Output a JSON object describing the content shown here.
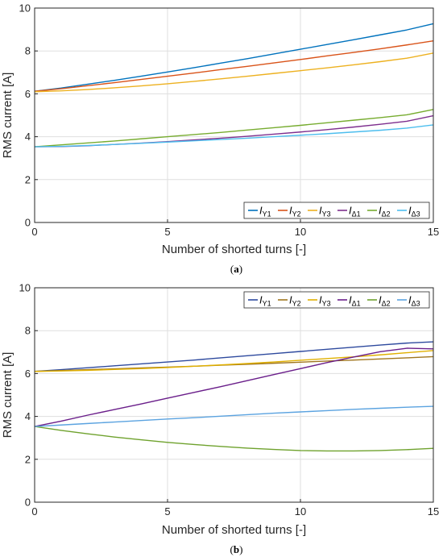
{
  "chart_data": [
    {
      "type": "line",
      "panel_label": "a",
      "xlabel": "Number of shorted turns [-]",
      "ylabel": "RMS current [A]",
      "xlim": [
        0,
        15
      ],
      "ylim": [
        0,
        10
      ],
      "xticks": [
        "0",
        "5",
        "10",
        "15"
      ],
      "yticks": [
        "0",
        "2",
        "4",
        "6",
        "8",
        "10"
      ],
      "grid": true,
      "legend": {
        "position": "bottom-right",
        "orientation": "horizontal"
      },
      "x": [
        0,
        1,
        2,
        3,
        4,
        5,
        6,
        7,
        8,
        9,
        10,
        11,
        12,
        13,
        14,
        15
      ],
      "series": [
        {
          "name": "IY1",
          "label_main": "I",
          "label_sub": "Y1",
          "color": "#0072BD",
          "values": [
            6.12,
            6.27,
            6.45,
            6.63,
            6.82,
            7.02,
            7.22,
            7.43,
            7.64,
            7.86,
            8.08,
            8.3,
            8.52,
            8.75,
            8.98,
            9.27
          ]
        },
        {
          "name": "IY2",
          "label_main": "I",
          "label_sub": "Y2",
          "color": "#D95319",
          "values": [
            6.12,
            6.24,
            6.38,
            6.52,
            6.67,
            6.82,
            6.97,
            7.13,
            7.28,
            7.44,
            7.6,
            7.77,
            7.93,
            8.1,
            8.28,
            8.47
          ]
        },
        {
          "name": "IY3",
          "label_main": "I",
          "label_sub": "Y3",
          "color": "#EDB120",
          "values": [
            6.1,
            6.14,
            6.2,
            6.28,
            6.37,
            6.47,
            6.58,
            6.7,
            6.82,
            6.95,
            7.08,
            7.21,
            7.35,
            7.5,
            7.66,
            7.9
          ]
        },
        {
          "name": "IΔ1",
          "label_main": "I",
          "label_sub": "Δ1",
          "color": "#7E2F8E",
          "values": [
            3.53,
            3.54,
            3.58,
            3.64,
            3.7,
            3.77,
            3.85,
            3.93,
            4.02,
            4.12,
            4.22,
            4.33,
            4.45,
            4.58,
            4.72,
            4.98
          ]
        },
        {
          "name": "IΔ2",
          "label_main": "I",
          "label_sub": "Δ2",
          "color": "#77AC30",
          "values": [
            3.53,
            3.62,
            3.71,
            3.8,
            3.9,
            4.0,
            4.1,
            4.2,
            4.31,
            4.42,
            4.53,
            4.65,
            4.77,
            4.89,
            5.02,
            5.27
          ]
        },
        {
          "name": "IΔ3",
          "label_main": "I",
          "label_sub": "Δ3",
          "color": "#4DBEEE",
          "values": [
            3.53,
            3.55,
            3.59,
            3.64,
            3.69,
            3.75,
            3.81,
            3.87,
            3.93,
            4.0,
            4.07,
            4.14,
            4.22,
            4.3,
            4.4,
            4.55
          ]
        }
      ]
    },
    {
      "type": "line",
      "panel_label": "b",
      "xlabel": "Number of shorted turns [-]",
      "ylabel": "RMS current [A]",
      "xlim": [
        0,
        15
      ],
      "ylim": [
        0,
        10
      ],
      "xticks": [
        "0",
        "5",
        "10",
        "15"
      ],
      "yticks": [
        "0",
        "2",
        "4",
        "6",
        "8",
        "10"
      ],
      "grid": true,
      "legend": {
        "position": "top-right",
        "orientation": "horizontal"
      },
      "x": [
        0,
        1,
        2,
        3,
        4,
        5,
        6,
        7,
        8,
        9,
        10,
        11,
        12,
        13,
        14,
        15
      ],
      "series": [
        {
          "name": "IY1",
          "label_main": "I",
          "label_sub": "Y1",
          "color": "#2E4A9E",
          "values": [
            6.1,
            6.18,
            6.27,
            6.36,
            6.45,
            6.54,
            6.63,
            6.73,
            6.83,
            6.93,
            7.03,
            7.13,
            7.23,
            7.33,
            7.42,
            7.48
          ]
        },
        {
          "name": "IY2",
          "label_main": "I",
          "label_sub": "Y2",
          "color": "#A0761E",
          "values": [
            6.1,
            6.14,
            6.18,
            6.22,
            6.26,
            6.3,
            6.34,
            6.39,
            6.43,
            6.48,
            6.53,
            6.58,
            6.63,
            6.68,
            6.73,
            6.79
          ]
        },
        {
          "name": "IY3",
          "label_main": "I",
          "label_sub": "Y3",
          "color": "#E0B000",
          "values": [
            6.1,
            6.12,
            6.15,
            6.19,
            6.23,
            6.28,
            6.34,
            6.4,
            6.47,
            6.54,
            6.62,
            6.7,
            6.78,
            6.87,
            6.97,
            7.07
          ]
        },
        {
          "name": "IΔ1",
          "label_main": "I",
          "label_sub": "Δ1",
          "color": "#6A1E8A",
          "values": [
            3.53,
            3.78,
            4.06,
            4.32,
            4.58,
            4.85,
            5.12,
            5.39,
            5.67,
            5.95,
            6.23,
            6.51,
            6.77,
            7.02,
            7.18,
            7.15
          ]
        },
        {
          "name": "IΔ2",
          "label_main": "I",
          "label_sub": "Δ2",
          "color": "#6FA22E",
          "values": [
            3.53,
            3.35,
            3.19,
            3.04,
            2.91,
            2.79,
            2.69,
            2.6,
            2.52,
            2.46,
            2.41,
            2.39,
            2.39,
            2.41,
            2.45,
            2.51
          ]
        },
        {
          "name": "IΔ3",
          "label_main": "I",
          "label_sub": "Δ3",
          "color": "#5BA3E0",
          "values": [
            3.53,
            3.6,
            3.67,
            3.74,
            3.81,
            3.88,
            3.94,
            4.01,
            4.08,
            4.15,
            4.21,
            4.27,
            4.33,
            4.38,
            4.43,
            4.47
          ]
        }
      ]
    }
  ]
}
